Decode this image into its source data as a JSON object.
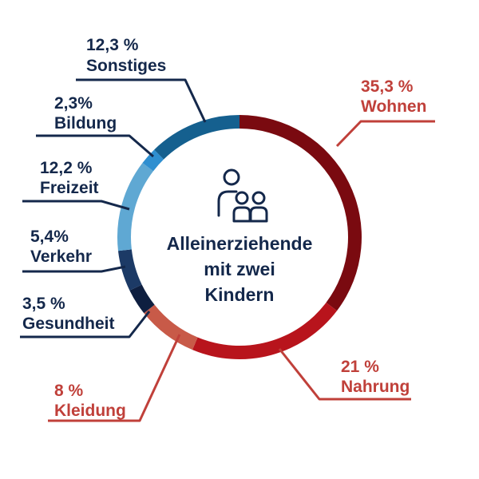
{
  "chart_data": {
    "type": "pie",
    "center_label": [
      "Alleinerziehende",
      "mit zwei",
      "Kindern"
    ],
    "center_icon": "family-parent-children-icon",
    "slices": [
      {
        "name": "Wohnen",
        "value": 35.3,
        "label": "35,3 %",
        "color": "#7a0a10",
        "label_color": "#c0403a"
      },
      {
        "name": "Nahrung",
        "value": 21.0,
        "label": "21 %",
        "color": "#b8141c",
        "label_color": "#c0403a"
      },
      {
        "name": "Kleidung",
        "value": 8.0,
        "label": "8 %",
        "color": "#c85a48",
        "label_color": "#c0403a"
      },
      {
        "name": "Gesundheit",
        "value": 3.5,
        "label": "3,5 %",
        "color": "#0e1f40",
        "label_color": "#14284b"
      },
      {
        "name": "Verkehr",
        "value": 5.4,
        "label": "5,4%",
        "color": "#1c3a66",
        "label_color": "#14284b"
      },
      {
        "name": "Freizeit",
        "value": 12.2,
        "label": "12,2 %",
        "color": "#5fa8d3",
        "label_color": "#14284b"
      },
      {
        "name": "Bildung",
        "value": 2.3,
        "label": "2,3%",
        "color": "#2f8fd0",
        "label_color": "#14284b"
      },
      {
        "name": "Sonstiges",
        "value": 12.3,
        "label": "12,3 %",
        "color": "#15608f",
        "label_color": "#14284b"
      }
    ],
    "legend": "none"
  }
}
